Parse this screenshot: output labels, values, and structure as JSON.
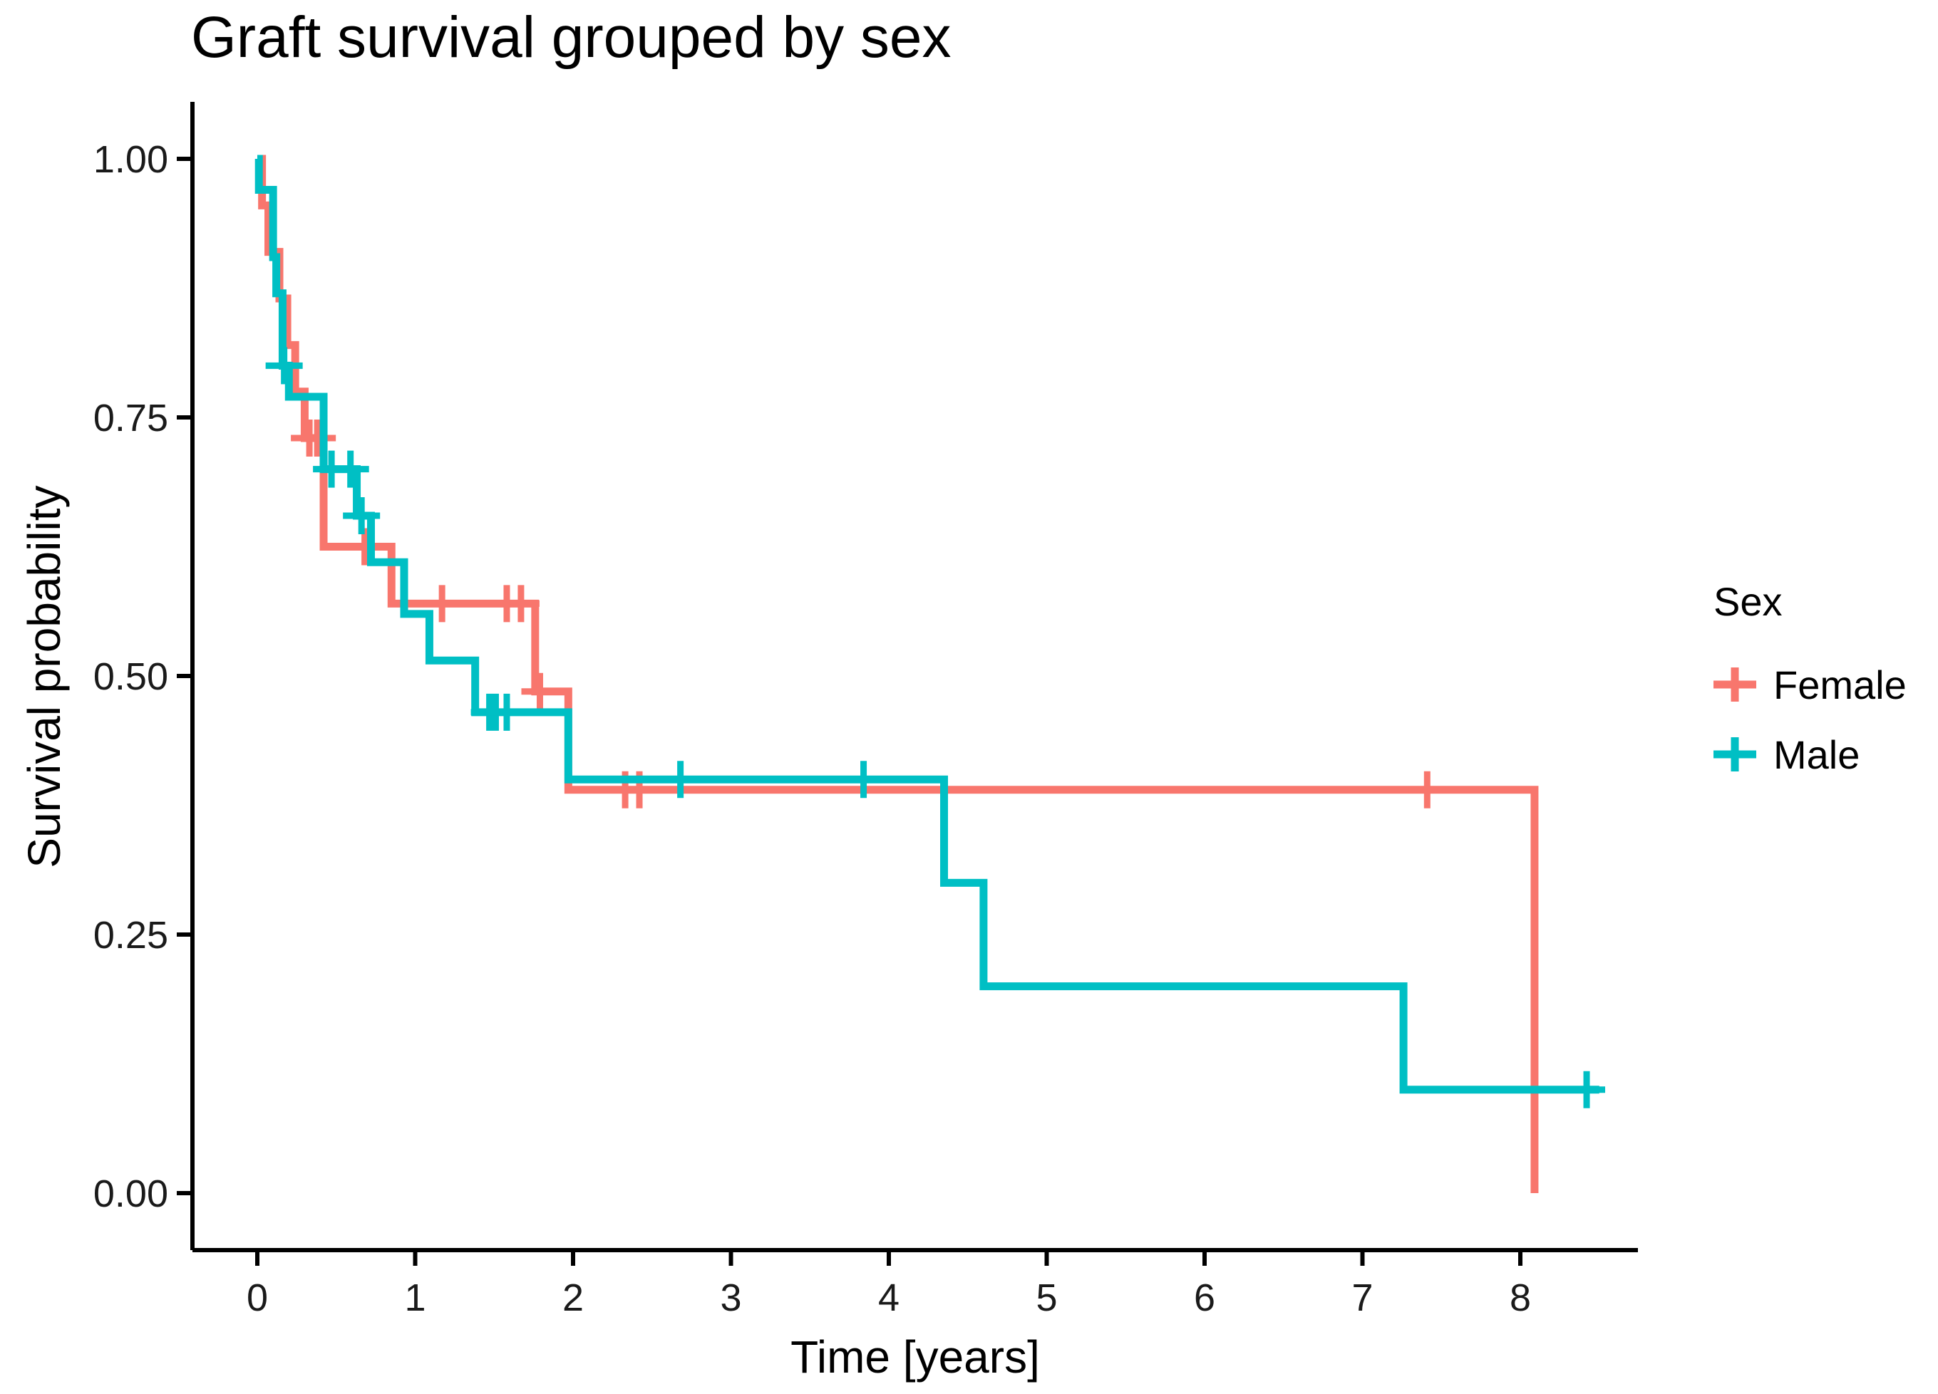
{
  "title": "Graft survival grouped by sex",
  "chart_data": {
    "type": "line",
    "subtype": "kaplan-meier-step",
    "title": "Graft survival grouped by sex",
    "xlabel": "Time [years]",
    "ylabel": "Survival probability",
    "xlim": [
      0,
      8.5
    ],
    "ylim": [
      0.0,
      1.0
    ],
    "grid": false,
    "x_ticks": [
      "0",
      "1",
      "2",
      "3",
      "4",
      "5",
      "6",
      "7",
      "8"
    ],
    "x_tick_values": [
      0,
      1,
      2,
      3,
      4,
      5,
      6,
      7,
      8
    ],
    "y_ticks": [
      "0.00",
      "0.25",
      "0.50",
      "0.75",
      "1.00"
    ],
    "y_tick_values": [
      0.0,
      0.25,
      0.5,
      0.75,
      1.0
    ],
    "legend": {
      "title": "Sex",
      "position": "right",
      "entries": [
        "Female",
        "Male"
      ]
    },
    "series": [
      {
        "name": "Female",
        "color": "#F8766D",
        "end_time": 8.09,
        "steps": [
          [
            0.0,
            1.0
          ],
          [
            0.03,
            0.955
          ],
          [
            0.07,
            0.91
          ],
          [
            0.14,
            0.865
          ],
          [
            0.19,
            0.82
          ],
          [
            0.24,
            0.775
          ],
          [
            0.3,
            0.73
          ],
          [
            0.42,
            0.625
          ],
          [
            0.85,
            0.57
          ],
          [
            1.76,
            0.485
          ],
          [
            1.97,
            0.39
          ],
          [
            8.09,
            0.0
          ]
        ],
        "censors": [
          [
            0.33,
            0.73
          ],
          [
            0.38,
            0.73
          ],
          [
            0.68,
            0.625
          ],
          [
            1.17,
            0.57
          ],
          [
            1.58,
            0.57
          ],
          [
            1.67,
            0.57
          ],
          [
            1.79,
            0.485
          ],
          [
            2.33,
            0.39
          ],
          [
            2.42,
            0.39
          ],
          [
            7.41,
            0.39
          ]
        ]
      },
      {
        "name": "Male",
        "color": "#00BFC4",
        "end_time": 8.5,
        "steps": [
          [
            0.0,
            1.0
          ],
          [
            0.01,
            0.97
          ],
          [
            0.1,
            0.905
          ],
          [
            0.12,
            0.87
          ],
          [
            0.16,
            0.8
          ],
          [
            0.2,
            0.77
          ],
          [
            0.42,
            0.7
          ],
          [
            0.63,
            0.655
          ],
          [
            0.72,
            0.61
          ],
          [
            0.93,
            0.56
          ],
          [
            1.09,
            0.515
          ],
          [
            1.38,
            0.465
          ],
          [
            1.97,
            0.4
          ],
          [
            4.35,
            0.3
          ],
          [
            4.6,
            0.2
          ],
          [
            7.26,
            0.1
          ]
        ],
        "censors": [
          [
            0.17,
            0.8
          ],
          [
            0.47,
            0.7
          ],
          [
            0.59,
            0.7
          ],
          [
            0.66,
            0.655
          ],
          [
            1.47,
            0.465
          ],
          [
            1.51,
            0.465
          ],
          [
            1.58,
            0.465
          ],
          [
            2.68,
            0.4
          ],
          [
            3.84,
            0.4
          ],
          [
            8.42,
            0.1
          ]
        ]
      }
    ]
  }
}
